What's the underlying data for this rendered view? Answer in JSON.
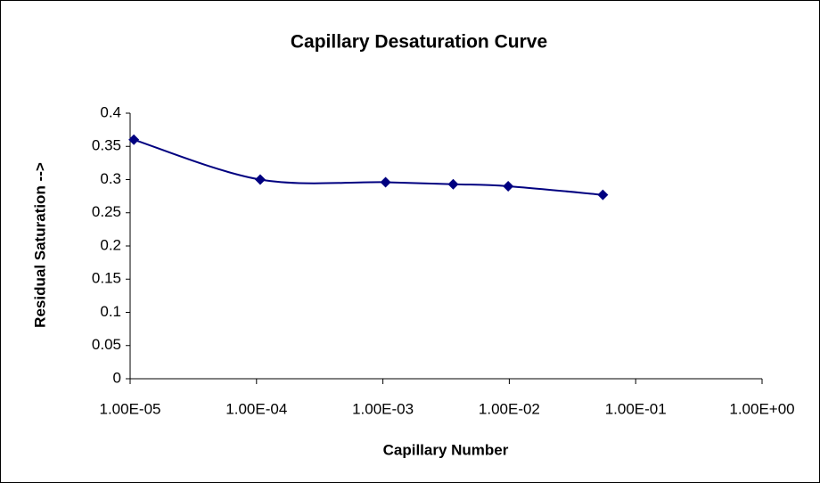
{
  "chart_data": {
    "type": "line",
    "title": "Capillary Desaturation Curve",
    "x_label": "Capillary Number",
    "y_label": "Residual Saturation -->",
    "x_scale": "log",
    "x": [
      1.07e-05,
      0.000107,
      0.00105,
      0.0036,
      0.0098,
      0.055
    ],
    "series": [
      {
        "color": "#000080",
        "values": [
          0.36,
          0.3,
          0.296,
          0.293,
          0.29,
          0.277
        ]
      }
    ],
    "xlim": [
      1e-05,
      1
    ],
    "xticks": [
      {
        "value": 1e-05,
        "label": "1.00E-05"
      },
      {
        "value": 0.0001,
        "label": "1.00E-04"
      },
      {
        "value": 0.001,
        "label": "1.00E-03"
      },
      {
        "value": 0.01,
        "label": "1.00E-02"
      },
      {
        "value": 0.1,
        "label": "1.00E-01"
      },
      {
        "value": 1,
        "label": "1.00E+00"
      }
    ],
    "ylim": [
      0,
      0.4
    ],
    "yticks": [
      0,
      0.05,
      0.1,
      0.15,
      0.2,
      0.25,
      0.3,
      0.35,
      0.4
    ],
    "grid": false
  }
}
